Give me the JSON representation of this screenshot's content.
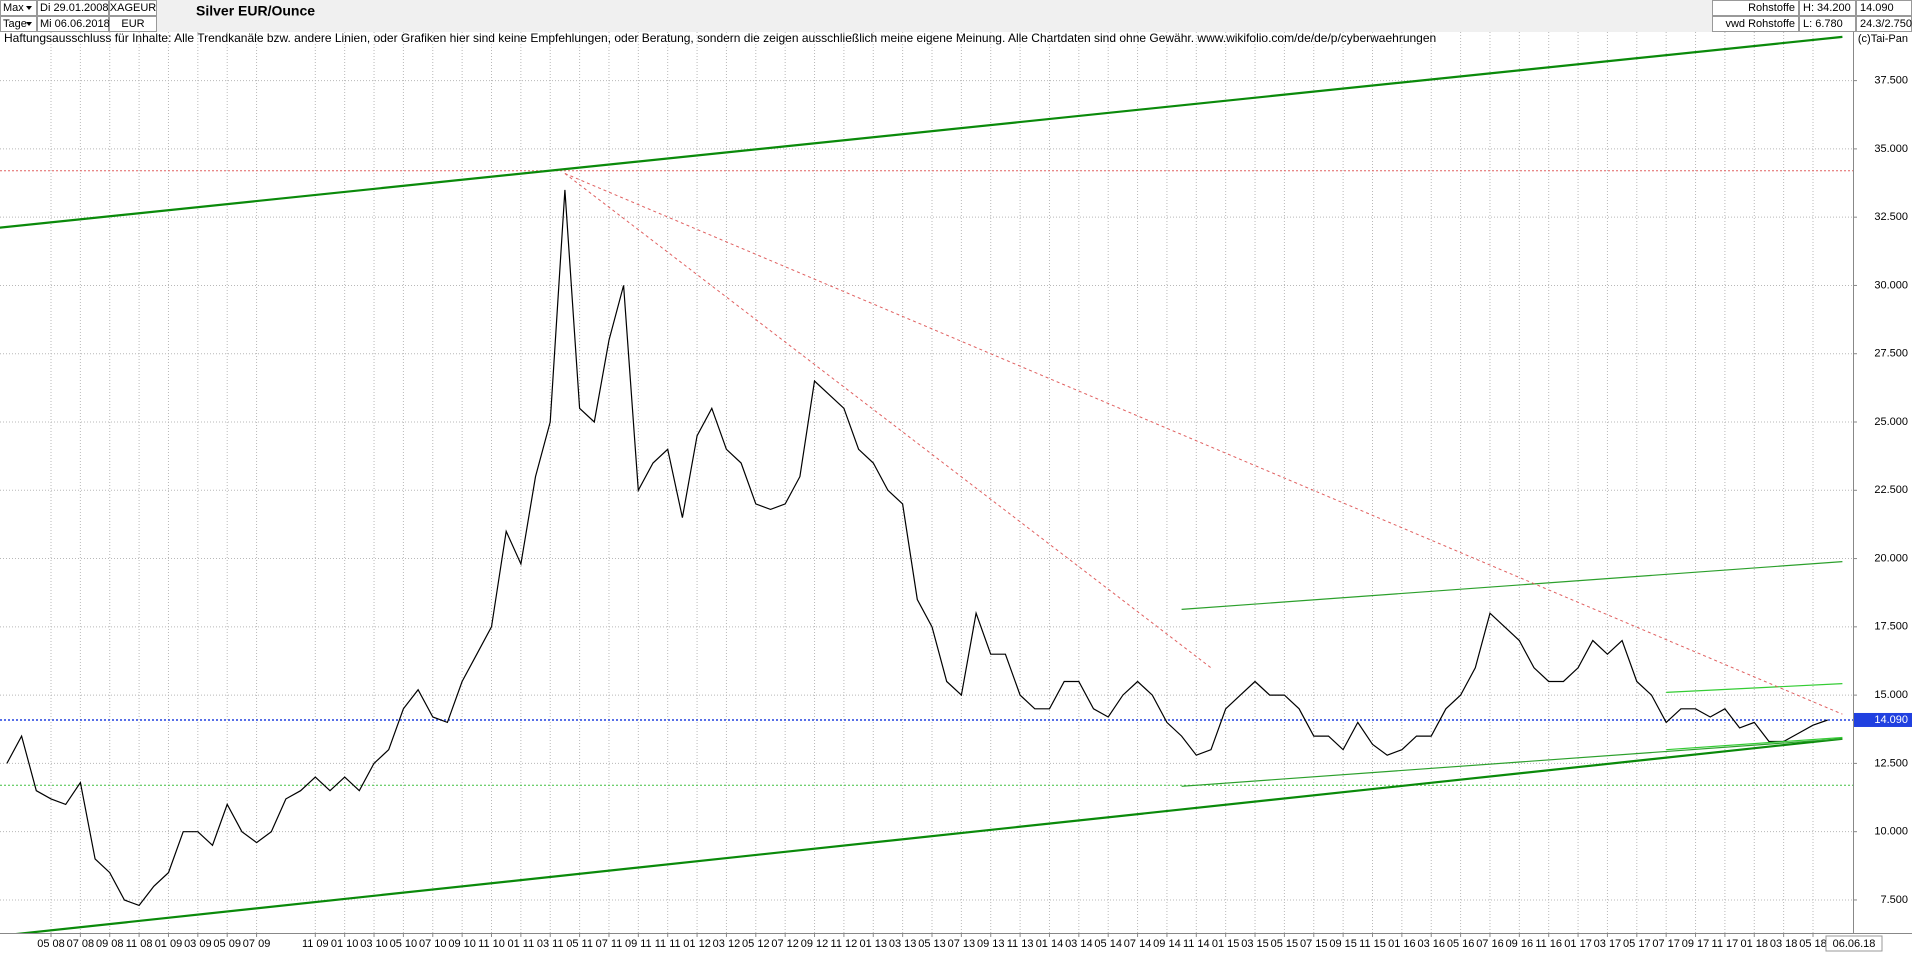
{
  "header": {
    "range": "Max",
    "period": "Tage",
    "start": "Di 29.01.2008",
    "end": "Mi 06.06.2018",
    "symbol": "XAGEUR",
    "currency": "EUR",
    "group": "Rohstoffe",
    "source": "vwd Rohstoffe",
    "high": "H: 34.200",
    "low": "L: 6.780",
    "ratio": "24.3/2.750",
    "copyright": "(c)Tai-Pan",
    "disclaimer": "Haftungsausschluss für Inhalte: Alle Trendkanäle bzw. andere Linien, oder Grafiken hier sind keine Empfehlungen, oder Beratung, sondern die zeigen ausschließlich meine eigene Meinung. Alle Chartdaten sind ohne Gewähr.  www.wikifolio.com/de/de/p/cyberwaehrungen"
  },
  "chart_data": {
    "type": "line",
    "title": "Silver EUR/Ounce",
    "last_price": {
      "value": 14.09,
      "label": "14.090"
    },
    "end_date_label": "06.06.18",
    "xticks": [
      "05 08",
      "07 08",
      "09 08",
      "11 08",
      "01 09",
      "03 09",
      "05 09",
      "07 09",
      "11 09",
      "01 10",
      "03 10",
      "05 10",
      "07 10",
      "09 10",
      "11 10",
      "01 11",
      "03 11",
      "05 11",
      "07 11",
      "09 11",
      "11 11",
      "01 12",
      "03 12",
      "05 12",
      "07 12",
      "09 12",
      "11 12",
      "01 13",
      "03 13",
      "05 13",
      "07 13",
      "09 13",
      "11 13",
      "01 14",
      "03 14",
      "05 14",
      "07 14",
      "09 14",
      "11 14",
      "01 15",
      "03 15",
      "05 15",
      "07 15",
      "09 15",
      "11 15",
      "01 16",
      "03 16",
      "05 16",
      "07 16",
      "09 16",
      "11 16",
      "01 17",
      "03 17",
      "05 17",
      "07 17",
      "09 17",
      "11 17",
      "01 18",
      "03 18",
      "05 18"
    ],
    "ylim": [
      6.29,
      39.28
    ],
    "yticks": [
      {
        "value": 7.5,
        "label": "7.500"
      },
      {
        "value": 10,
        "label": "10.000"
      },
      {
        "value": 12.5,
        "label": "12.500"
      },
      {
        "value": 15,
        "label": "15.000"
      },
      {
        "value": 17.5,
        "label": "17.500"
      },
      {
        "value": 20,
        "label": "20.000"
      },
      {
        "value": 22.5,
        "label": "22.500"
      },
      {
        "value": 25,
        "label": "25.000"
      },
      {
        "value": 27.5,
        "label": "27.500"
      },
      {
        "value": 30,
        "label": "30.000"
      },
      {
        "value": 32.5,
        "label": "32.500"
      },
      {
        "value": 35,
        "label": "35.000"
      },
      {
        "value": 37.5,
        "label": "37.500"
      }
    ],
    "grid": true,
    "x": [
      "02 08",
      "03 08",
      "04 08",
      "05 08",
      "06 08",
      "07 08",
      "08 08",
      "09 08",
      "10 08",
      "11 08",
      "12 08",
      "01 09",
      "02 09",
      "03 09",
      "04 09",
      "05 09",
      "06 09",
      "07 09",
      "08 09",
      "09 09",
      "10 09",
      "11 09",
      "12 09",
      "01 10",
      "02 10",
      "03 10",
      "04 10",
      "05 10",
      "06 10",
      "07 10",
      "08 10",
      "09 10",
      "10 10",
      "11 10",
      "12 10",
      "01 11",
      "02 11",
      "03 11",
      "04 11",
      "05 11",
      "06 11",
      "07 11",
      "08 11",
      "09 11",
      "10 11",
      "11 11",
      "12 11",
      "01 12",
      "02 12",
      "03 12",
      "04 12",
      "05 12",
      "06 12",
      "07 12",
      "08 12",
      "09 12",
      "10 12",
      "11 12",
      "12 12",
      "01 13",
      "02 13",
      "03 13",
      "04 13",
      "05 13",
      "06 13",
      "07 13",
      "08 13",
      "09 13",
      "10 13",
      "11 13",
      "12 13",
      "01 14",
      "02 14",
      "03 14",
      "04 14",
      "05 14",
      "06 14",
      "07 14",
      "08 14",
      "09 14",
      "10 14",
      "11 14",
      "12 14",
      "01 15",
      "02 15",
      "03 15",
      "04 15",
      "05 15",
      "06 15",
      "07 15",
      "08 15",
      "09 15",
      "10 15",
      "11 15",
      "12 15",
      "01 16",
      "02 16",
      "03 16",
      "04 16",
      "05 16",
      "06 16",
      "07 16",
      "08 16",
      "09 16",
      "10 16",
      "11 16",
      "12 16",
      "01 17",
      "02 17",
      "03 17",
      "04 17",
      "05 17",
      "06 17",
      "07 17",
      "08 17",
      "09 17",
      "10 17",
      "11 17",
      "12 17",
      "01 18",
      "02 18",
      "03 18",
      "04 18",
      "05 18",
      "06 18"
    ],
    "series": [
      {
        "color": "#000000",
        "values": [
          12.5,
          13.5,
          11.5,
          11.2,
          11.0,
          11.8,
          9.0,
          8.5,
          7.5,
          7.3,
          8.0,
          8.5,
          10.0,
          10.0,
          9.5,
          11.0,
          10.0,
          9.6,
          10.0,
          11.2,
          11.5,
          12.0,
          11.5,
          12.0,
          11.5,
          12.5,
          13.0,
          14.5,
          15.2,
          14.2,
          14.0,
          15.5,
          16.5,
          17.5,
          21.0,
          19.8,
          23.0,
          25.0,
          33.5,
          25.5,
          25.0,
          28.0,
          30.0,
          22.5,
          23.5,
          24.0,
          21.5,
          24.5,
          25.5,
          24.0,
          23.5,
          22.0,
          21.8,
          22.0,
          23.0,
          26.5,
          26.0,
          25.5,
          24.0,
          23.5,
          22.5,
          22.0,
          18.5,
          17.5,
          15.5,
          15.0,
          18.0,
          16.5,
          16.5,
          15.0,
          14.5,
          14.5,
          15.5,
          15.5,
          14.5,
          14.2,
          15.0,
          15.5,
          15.0,
          14.0,
          13.5,
          12.8,
          13.0,
          14.5,
          15.0,
          15.5,
          15.0,
          15.0,
          14.5,
          13.5,
          13.5,
          13.0,
          14.0,
          13.2,
          12.8,
          13.0,
          13.5,
          13.5,
          14.5,
          15.0,
          16.0,
          18.0,
          17.5,
          17.0,
          16.0,
          15.5,
          15.5,
          16.0,
          17.0,
          16.5,
          17.0,
          15.5,
          15.0,
          14.0,
          14.5,
          14.5,
          14.2,
          14.5,
          13.8,
          14.0,
          13.3,
          13.3,
          13.6,
          13.9,
          14.09
        ]
      }
    ],
    "hlines": [
      {
        "value": 34.2,
        "color": "#e06060"
      },
      {
        "value": 11.7,
        "color": "#40c040"
      }
    ],
    "trendlines": [
      {
        "color": "#0a8a0a",
        "width": 2.2,
        "dashed": false,
        "x": [
          "01 08",
          "07 18"
        ],
        "values": [
          32.09,
          39.1
        ]
      },
      {
        "color": "#0a8a0a",
        "width": 2.2,
        "dashed": false,
        "x": [
          "01 08",
          "07 18"
        ],
        "values": [
          6.16,
          13.4
        ]
      },
      {
        "color": "#2ca02c",
        "width": 1.2,
        "dashed": false,
        "x": [
          "10 14",
          "07 18"
        ],
        "values": [
          18.14,
          19.89
        ]
      },
      {
        "color": "#2ca02c",
        "width": 1.2,
        "dashed": false,
        "x": [
          "10 14",
          "07 18"
        ],
        "values": [
          11.66,
          13.4
        ]
      },
      {
        "color": "#33cc33",
        "width": 1.2,
        "dashed": false,
        "x": [
          "07 17",
          "07 18"
        ],
        "values": [
          15.1,
          15.42
        ]
      },
      {
        "color": "#33cc33",
        "width": 1.2,
        "dashed": false,
        "x": [
          "07 17",
          "07 18"
        ],
        "values": [
          13.0,
          13.45
        ]
      },
      {
        "color": "#e06060",
        "width": 1,
        "dashed": true,
        "x": [
          "04 11",
          "12 14"
        ],
        "values": [
          34.1,
          16.0
        ]
      },
      {
        "color": "#e06060",
        "width": 1,
        "dashed": true,
        "x": [
          "04 11",
          "07 18"
        ],
        "values": [
          34.1,
          14.3
        ]
      }
    ]
  }
}
